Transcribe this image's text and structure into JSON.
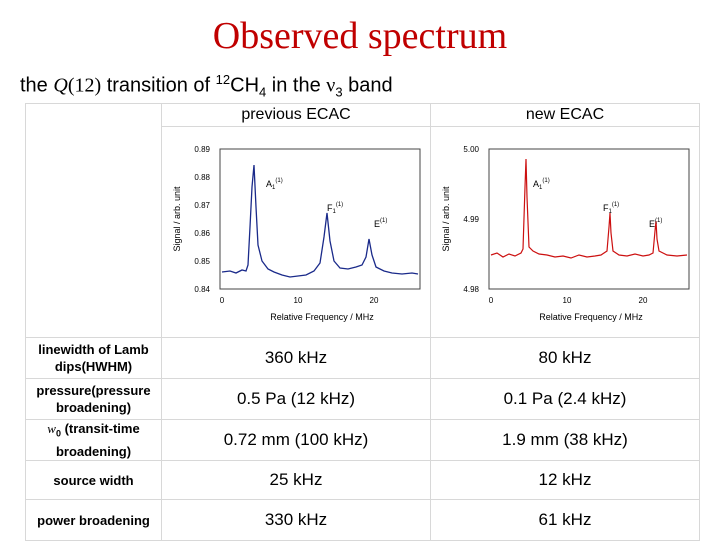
{
  "title": "Observed spectrum",
  "subtitle": {
    "prefix": "the ",
    "q": "Q",
    "q_arg": "(12)",
    "mid": " transition of ",
    "isotope": "12",
    "mol": "CH",
    "mol_sub": "4",
    "mid2": " in the ",
    "nu": "ν",
    "nu_sub": "3",
    "suffix": " band"
  },
  "columns": {
    "previous": "previous ECAC",
    "new": "new ECAC"
  },
  "plots": {
    "previous": {
      "ylabel": "Signal / arb. unit",
      "xlabel": "Relative Frequency / MHz",
      "yticks": [
        "0.89",
        "0.88",
        "0.87",
        "0.86",
        "0.85",
        "0.84"
      ],
      "xticks": [
        "0",
        "10",
        "20"
      ],
      "peaks": [
        {
          "label": "A",
          "sub": "1",
          "sup": "(1)"
        },
        {
          "label": "F",
          "sub": "1",
          "sup": "(1)"
        },
        {
          "label": "E",
          "sub": "",
          "sup": "(1)"
        }
      ],
      "color": "#1a2a8a"
    },
    "new": {
      "ylabel": "Signal / arb. unit",
      "xlabel": "Relative Frequency / MHz",
      "yticks": [
        "5.00",
        "4.99",
        "4.98"
      ],
      "xticks": [
        "0",
        "10",
        "20"
      ],
      "peaks": [
        {
          "label": "A",
          "sub": "1",
          "sup": "(1)"
        },
        {
          "label": "F",
          "sub": "1",
          "sup": "(1)"
        },
        {
          "label": "E",
          "sub": "",
          "sup": "(1)"
        }
      ],
      "color": "#cc1010"
    }
  },
  "rows": [
    {
      "label": "linewidth of Lamb dips(HWHM)",
      "previous": "360 kHz",
      "new": "80 kHz"
    },
    {
      "label": "pressure(pressure broadening)",
      "previous": "0.5 Pa (12 kHz)",
      "new": "0.1 Pa (2.4 kHz)"
    },
    {
      "label_w": "w",
      "label_w_sub": "0",
      "label": " (transit-time broadening)",
      "previous": "0.72 mm (100 kHz)",
      "new": "1.9 mm (38 kHz)"
    },
    {
      "label": "source width",
      "previous": "25 kHz",
      "new": "12 kHz"
    },
    {
      "label": "power broadening",
      "previous": "330 kHz",
      "new": "61 kHz"
    }
  ]
}
